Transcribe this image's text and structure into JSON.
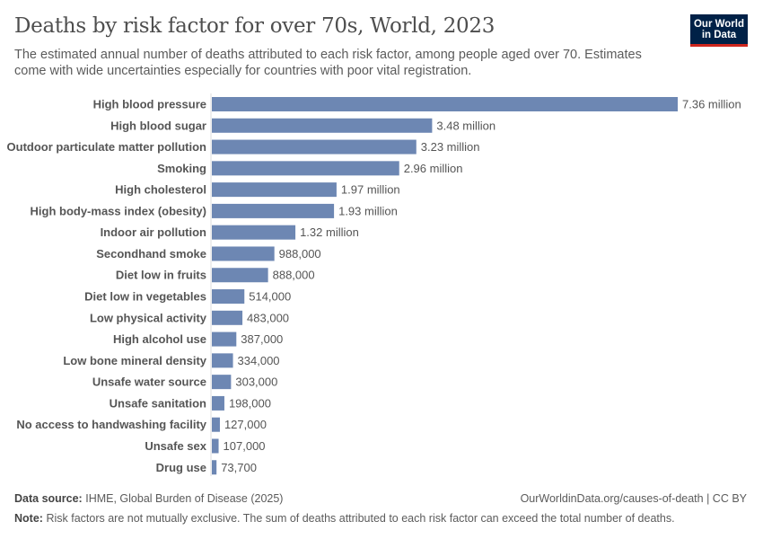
{
  "title": "Deaths by risk factor for over 70s, World, 2023",
  "subtitle": "The estimated annual number of deaths attributed to each risk factor, among people aged over 70. Estimates come with wide uncertainties especially for countries with poor vital registration.",
  "logo": "Our World in Data",
  "footer": {
    "source_label": "Data source:",
    "source": "IHME, Global Burden of Disease (2025)",
    "url": "OurWorldinData.org/causes-of-death | CC BY",
    "note_label": "Note:",
    "note": "Risk factors are not mutually exclusive. The sum of deaths attributed to each risk factor can exceed the total number of deaths."
  },
  "chart_data": {
    "type": "bar",
    "orientation": "horizontal",
    "bar_color": "#6d87b3",
    "categories": [
      "High blood pressure",
      "High blood sugar",
      "Outdoor particulate matter pollution",
      "Smoking",
      "High cholesterol",
      "High body-mass index (obesity)",
      "Indoor air pollution",
      "Secondhand smoke",
      "Diet low in fruits",
      "Diet low in vegetables",
      "Low physical activity",
      "High alcohol use",
      "Low bone mineral density",
      "Unsafe water source",
      "Unsafe sanitation",
      "No access to handwashing facility",
      "Unsafe sex",
      "Drug use"
    ],
    "values": [
      7360000,
      3480000,
      3230000,
      2960000,
      1970000,
      1930000,
      1320000,
      988000,
      888000,
      514000,
      483000,
      387000,
      334000,
      303000,
      198000,
      127000,
      107000,
      73700
    ],
    "labels": [
      "7.36 million",
      "3.48 million",
      "3.23 million",
      "2.96 million",
      "1.97 million",
      "1.93 million",
      "1.32 million",
      "988,000",
      "888,000",
      "514,000",
      "483,000",
      "387,000",
      "334,000",
      "303,000",
      "198,000",
      "127,000",
      "107,000",
      "73,700"
    ]
  }
}
